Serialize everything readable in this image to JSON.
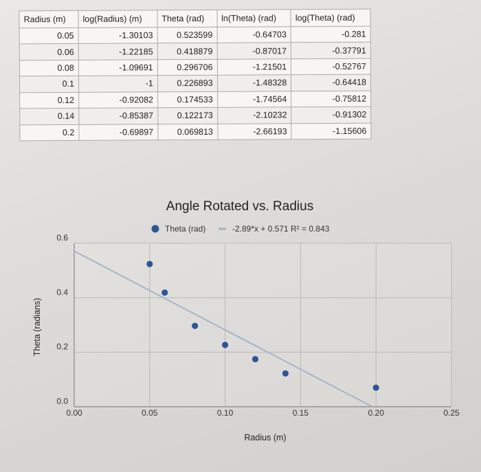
{
  "table": {
    "headers": [
      "Radius (m)",
      "log(Radius) (m)",
      "Theta (rad)",
      "ln(Theta) (rad)",
      "log(Theta) (rad)"
    ],
    "rows": [
      [
        "0.05",
        "-1.30103",
        "0.523599",
        "-0.64703",
        "-0.281"
      ],
      [
        "0.06",
        "-1.22185",
        "0.418879",
        "-0.87017",
        "-0.37791"
      ],
      [
        "0.08",
        "-1.09691",
        "0.296706",
        "-1.21501",
        "-0.52767"
      ],
      [
        "0.1",
        "-1",
        "0.226893",
        "-1.48328",
        "-0.64418"
      ],
      [
        "0.12",
        "-0.92082",
        "0.174533",
        "-1.74564",
        "-0.75812"
      ],
      [
        "0.14",
        "-0.85387",
        "0.122173",
        "-2.10232",
        "-0.91302"
      ],
      [
        "0.2",
        "-0.69897",
        "0.069813",
        "-2.66193",
        "-1.15606"
      ]
    ]
  },
  "chart_data": {
    "type": "scatter",
    "title": "Angle Rotated vs. Radius",
    "xlabel": "Radius (m)",
    "ylabel": "Theta (radians)",
    "xlim": [
      0,
      0.25
    ],
    "ylim": [
      0,
      0.6
    ],
    "x_ticks": [
      "0.00",
      "0.05",
      "0.10",
      "0.15",
      "0.20",
      "0.25"
    ],
    "y_ticks": [
      "0.0",
      "0.2",
      "0.4",
      "0.6"
    ],
    "x_tick_values": [
      0,
      0.05,
      0.1,
      0.15,
      0.2,
      0.25
    ],
    "y_tick_values": [
      0,
      0.2,
      0.4,
      0.6
    ],
    "grid": true,
    "legend_position": "top",
    "series": [
      {
        "name": "Theta (rad)",
        "color": "#2f5597",
        "x": [
          0.05,
          0.06,
          0.08,
          0.1,
          0.12,
          0.14,
          0.2
        ],
        "y": [
          0.523599,
          0.418879,
          0.296706,
          0.226893,
          0.174533,
          0.122173,
          0.069813
        ]
      }
    ],
    "trendline": {
      "label": "-2.89*x + 0.571 R² = 0.843",
      "slope": -2.89,
      "intercept": 0.571,
      "color": "#9fb0c9"
    }
  }
}
